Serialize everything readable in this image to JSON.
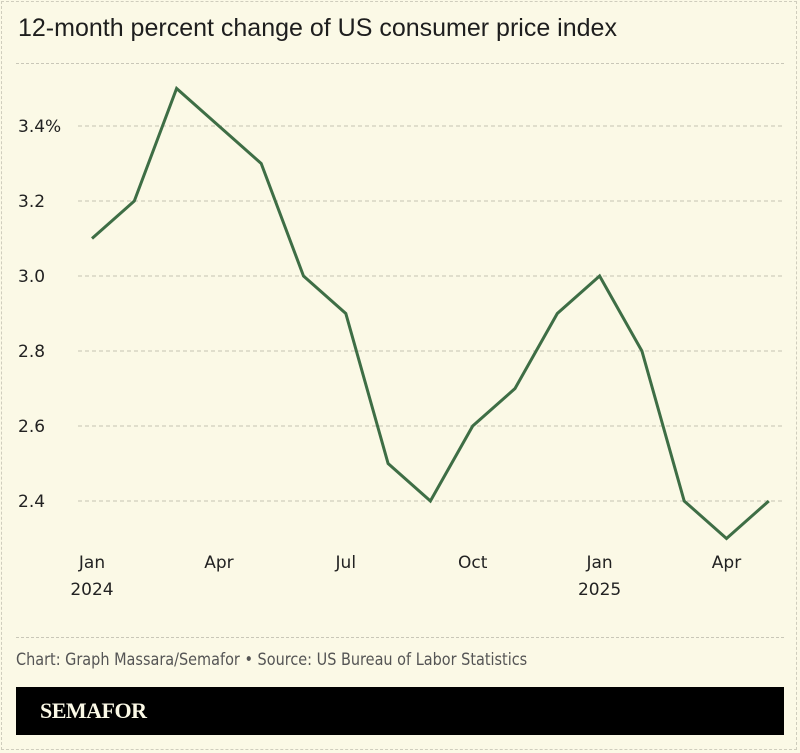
{
  "chart_data": {
    "type": "line",
    "title": "12-month percent change of US consumer price index",
    "x": [
      "2024-01",
      "2024-02",
      "2024-03",
      "2024-04",
      "2024-05",
      "2024-06",
      "2024-07",
      "2024-08",
      "2024-09",
      "2024-10",
      "2024-11",
      "2024-12",
      "2025-01",
      "2025-02",
      "2025-03",
      "2025-04",
      "2025-05"
    ],
    "values": [
      3.1,
      3.2,
      3.5,
      3.4,
      3.3,
      3.0,
      2.9,
      2.5,
      2.4,
      2.6,
      2.7,
      2.9,
      3.0,
      2.8,
      2.4,
      2.3,
      2.4
    ],
    "yticks": [
      3.4,
      3.2,
      3.0,
      2.8,
      2.6,
      2.4
    ],
    "ytick_labels": [
      "3.4%",
      "3.2",
      "3.0",
      "2.8",
      "2.6",
      "2.4"
    ],
    "xticks": [
      {
        "month": "2024-01",
        "label": "Jan",
        "sub": "2024"
      },
      {
        "month": "2024-04",
        "label": "Apr",
        "sub": ""
      },
      {
        "month": "2024-07",
        "label": "Jul",
        "sub": ""
      },
      {
        "month": "2024-10",
        "label": "Oct",
        "sub": ""
      },
      {
        "month": "2025-01",
        "label": "Jan",
        "sub": "2025"
      },
      {
        "month": "2025-04",
        "label": "Apr",
        "sub": ""
      }
    ],
    "grid": true,
    "line_color": "#3e6e45"
  },
  "credit": "Chart: Graph Massara/Semafor • Source: US Bureau of Labor Statistics",
  "logo": "SEMAFOR"
}
